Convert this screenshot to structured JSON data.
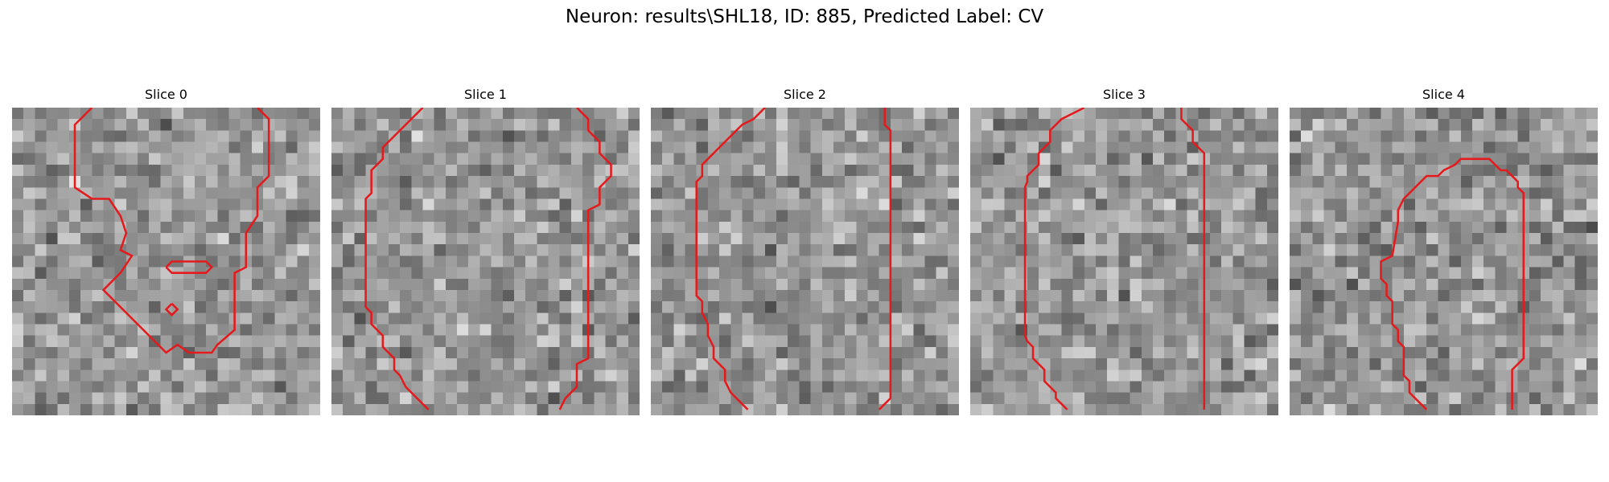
{
  "figure": {
    "title": "Neuron: results\\SHL18, ID: 885, Predicted Label: CV",
    "contour_color": "#e41a1c"
  },
  "panels": [
    {
      "title": "Slice 0",
      "seed": 11,
      "contours": [
        [
          [
            7,
            0
          ],
          [
            5.5,
            1.5
          ],
          [
            5.5,
            7
          ],
          [
            7,
            8
          ],
          [
            8.5,
            8
          ],
          [
            9.5,
            9.5
          ],
          [
            10,
            11
          ],
          [
            9.5,
            12.5
          ],
          [
            10.5,
            13
          ],
          [
            9.5,
            14.5
          ],
          [
            8,
            16
          ],
          [
            13.5,
            21.5
          ],
          [
            14.5,
            20.8
          ],
          [
            15.5,
            21.5
          ],
          [
            17.5,
            21.5
          ],
          [
            18,
            20.8
          ],
          [
            19.5,
            19.5
          ],
          [
            19.5,
            14.5
          ],
          [
            20.5,
            14
          ],
          [
            20.5,
            11
          ],
          [
            21.5,
            9.5
          ],
          [
            21.5,
            7
          ],
          [
            22.5,
            6
          ],
          [
            22.5,
            1
          ],
          [
            21.5,
            0
          ]
        ],
        [
          [
            13.5,
            14
          ],
          [
            14,
            13.5
          ],
          [
            17,
            13.5
          ],
          [
            17.5,
            14
          ],
          [
            17,
            14.5
          ],
          [
            14,
            14.5
          ],
          [
            13.5,
            14
          ]
        ],
        [
          [
            14,
            17.2
          ],
          [
            14.5,
            17.7
          ],
          [
            14,
            18.2
          ],
          [
            13.5,
            17.7
          ],
          [
            14,
            17.2
          ]
        ]
      ]
    },
    {
      "title": "Slice 1",
      "seed": 23,
      "contours": [
        [
          [
            8,
            0
          ],
          [
            6.5,
            1.5
          ],
          [
            4.5,
            3.5
          ],
          [
            4.5,
            4.5
          ],
          [
            3.5,
            5.5
          ],
          [
            3.5,
            7.5
          ],
          [
            3,
            8
          ],
          [
            3,
            17.5
          ],
          [
            3.5,
            18
          ],
          [
            3.5,
            19
          ],
          [
            4.5,
            20
          ],
          [
            4.5,
            21
          ],
          [
            5.5,
            22
          ],
          [
            5.5,
            23
          ],
          [
            6,
            23.5
          ],
          [
            6.5,
            24.5
          ],
          [
            7.5,
            25.5
          ],
          [
            8.5,
            26.5
          ]
        ],
        [
          [
            21.5,
            0
          ],
          [
            22.5,
            1
          ],
          [
            22.5,
            2
          ],
          [
            23.5,
            3
          ],
          [
            23.5,
            4
          ],
          [
            24.5,
            5
          ],
          [
            24.5,
            6
          ],
          [
            23.5,
            7
          ],
          [
            23.5,
            8.5
          ],
          [
            22.5,
            9
          ],
          [
            22.5,
            22
          ],
          [
            21.5,
            22.5
          ],
          [
            21.5,
            24.5
          ],
          [
            20.5,
            25.5
          ],
          [
            20,
            26.5
          ]
        ]
      ]
    },
    {
      "title": "Slice 2",
      "seed": 37,
      "contours": [
        [
          [
            10,
            0
          ],
          [
            9,
            1
          ],
          [
            8,
            1.5
          ],
          [
            7,
            2.5
          ],
          [
            6,
            3.5
          ],
          [
            5,
            4.5
          ],
          [
            4.5,
            5
          ],
          [
            4.5,
            6
          ],
          [
            4,
            6.5
          ],
          [
            4,
            16.5
          ],
          [
            4.5,
            17
          ],
          [
            4.5,
            18
          ],
          [
            5,
            19
          ],
          [
            5,
            20
          ],
          [
            5.5,
            21
          ],
          [
            5.5,
            22
          ],
          [
            6,
            22.5
          ],
          [
            6.5,
            23
          ],
          [
            6.5,
            24
          ],
          [
            7,
            25
          ],
          [
            7.5,
            25.5
          ],
          [
            8,
            26
          ],
          [
            8.5,
            26.5
          ]
        ],
        [
          [
            20.5,
            0
          ],
          [
            20.5,
            1.5
          ],
          [
            21,
            2
          ],
          [
            21,
            25.5
          ],
          [
            20.5,
            26
          ],
          [
            20,
            26.5
          ]
        ]
      ]
    },
    {
      "title": "Slice 3",
      "seed": 51,
      "contours": [
        [
          [
            10,
            0
          ],
          [
            9,
            0.5
          ],
          [
            8,
            1
          ],
          [
            7,
            2
          ],
          [
            7,
            3
          ],
          [
            6.5,
            3.5
          ],
          [
            6,
            4
          ],
          [
            6,
            5
          ],
          [
            5.5,
            5.5
          ],
          [
            5,
            6
          ],
          [
            5,
            6.5
          ],
          [
            4.8,
            7
          ],
          [
            4.8,
            20
          ],
          [
            5,
            20.5
          ],
          [
            5.5,
            21
          ],
          [
            5.5,
            22
          ],
          [
            6.5,
            23
          ],
          [
            6.5,
            24
          ],
          [
            7.5,
            25
          ],
          [
            7.5,
            25.5
          ],
          [
            8,
            26
          ],
          [
            8.5,
            26.5
          ]
        ],
        [
          [
            18.5,
            0
          ],
          [
            18.5,
            1
          ],
          [
            19.5,
            2
          ],
          [
            19.5,
            3
          ],
          [
            20.5,
            4
          ],
          [
            20.5,
            26.5
          ]
        ]
      ]
    },
    {
      "title": "Slice 4",
      "seed": 67,
      "contours": [
        [
          [
            12,
            26.5
          ],
          [
            11.5,
            26
          ],
          [
            10.5,
            25
          ],
          [
            10.5,
            24
          ],
          [
            10,
            23.5
          ],
          [
            10,
            21
          ],
          [
            9.5,
            20.5
          ],
          [
            9.5,
            19.5
          ],
          [
            9,
            19
          ],
          [
            9,
            17
          ],
          [
            8.5,
            16.5
          ],
          [
            8.5,
            15.5
          ],
          [
            8,
            15
          ],
          [
            8,
            13.5
          ],
          [
            9,
            13
          ],
          [
            9.5,
            10
          ],
          [
            9.5,
            9
          ],
          [
            10,
            8
          ],
          [
            11,
            7
          ],
          [
            11.5,
            6.5
          ],
          [
            12,
            6
          ],
          [
            13,
            6
          ],
          [
            13.5,
            5.5
          ],
          [
            14.5,
            5
          ],
          [
            15,
            4.5
          ],
          [
            17.5,
            4.5
          ],
          [
            18,
            5
          ],
          [
            18.5,
            5.5
          ],
          [
            19,
            5.5
          ],
          [
            19.5,
            6
          ],
          [
            20,
            6.5
          ],
          [
            20,
            7
          ],
          [
            20.5,
            7.5
          ],
          [
            20.5,
            22
          ],
          [
            19.5,
            23
          ],
          [
            19.5,
            24.5
          ],
          [
            19.5,
            26.5
          ]
        ]
      ]
    }
  ]
}
